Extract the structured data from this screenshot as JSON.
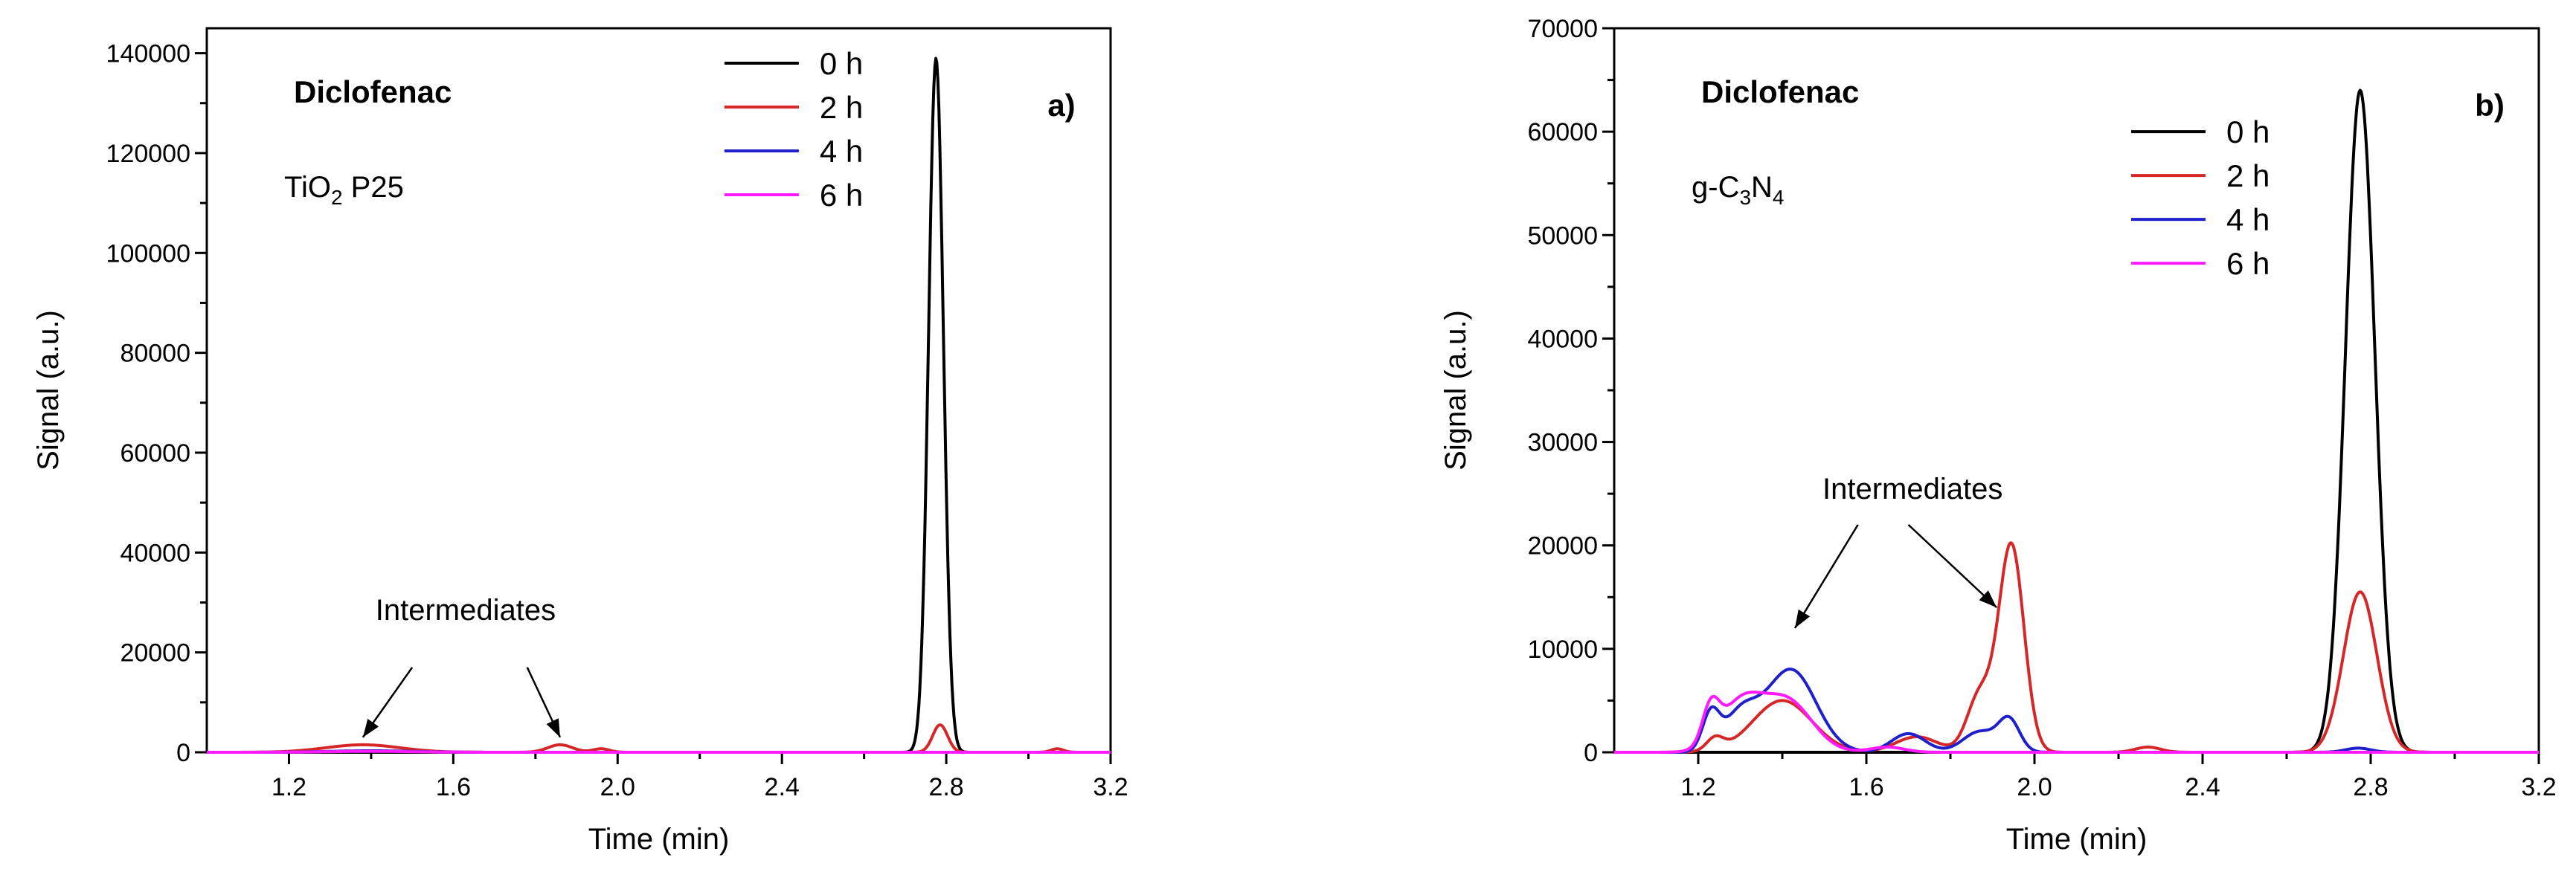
{
  "colors": {
    "0 h": "#000000",
    "2 h": "#d62728",
    "4 h": "#1f1fcc",
    "6 h": "#ff1aff"
  },
  "chart_data": [
    {
      "panel": "a",
      "type": "line",
      "panel_label": "a)",
      "compound": "Diclofenac",
      "catalyst_main": "TiO",
      "catalyst_sub": "2",
      "catalyst_rest": " P25",
      "xlabel": "Time (min)",
      "ylabel": "Signal (a.u.)",
      "xlim": [
        1.0,
        3.2
      ],
      "ylim": [
        0,
        145000
      ],
      "xticks": [
        1.2,
        1.6,
        2.0,
        2.4,
        2.8,
        3.2
      ],
      "xtick_labels": [
        "1.2",
        "1.6",
        "2.0",
        "2.4",
        "2.8",
        "3.2"
      ],
      "yticks": [
        0,
        20000,
        40000,
        60000,
        80000,
        100000,
        120000,
        140000
      ],
      "ytick_labels": [
        "0",
        "20000",
        "40000",
        "60000",
        "80000",
        "100000",
        "120000",
        "140000"
      ],
      "annotation": "Intermediates",
      "annotation_pos": [
        1.63,
        26500
      ],
      "arrows": [
        [
          1.5,
          17000,
          1.38,
          3000
        ],
        [
          1.78,
          17000,
          1.86,
          3000
        ]
      ],
      "legend_anchor": [
        2.26,
        138000
      ],
      "legend": [
        "0 h",
        "2 h",
        "4 h",
        "6 h"
      ],
      "series": [
        {
          "name": "0 h",
          "peaks": [
            [
              2.775,
              139000,
              0.018
            ]
          ]
        },
        {
          "name": "2 h",
          "peaks": [
            [
              2.785,
              5500,
              0.018
            ],
            [
              1.38,
              1500,
              0.09
            ],
            [
              1.86,
              1500,
              0.03
            ],
            [
              1.96,
              700,
              0.02
            ],
            [
              3.07,
              700,
              0.015
            ]
          ]
        },
        {
          "name": "4 h",
          "peaks": [
            [
              1.4,
              300,
              0.1
            ]
          ]
        },
        {
          "name": "6 h",
          "peaks": [
            [
              1.4,
              200,
              0.1
            ]
          ]
        }
      ]
    },
    {
      "panel": "b",
      "type": "line",
      "panel_label": "b)",
      "compound": "Diclofenac",
      "catalyst_main": "g-C",
      "catalyst_sub": "3",
      "catalyst_rest": "N",
      "catalyst_sub2": "4",
      "xlabel": "Time (min)",
      "ylabel": "Signal (a.u.)",
      "xlim": [
        1.0,
        3.2
      ],
      "ylim": [
        0,
        70000
      ],
      "xticks": [
        1.2,
        1.6,
        2.0,
        2.4,
        2.8,
        3.2
      ],
      "xtick_labels": [
        "1.2",
        "1.6",
        "2.0",
        "2.4",
        "2.8",
        "3.2"
      ],
      "yticks": [
        0,
        10000,
        20000,
        30000,
        40000,
        50000,
        60000,
        70000
      ],
      "ytick_labels": [
        "0",
        "10000",
        "20000",
        "30000",
        "40000",
        "50000",
        "60000",
        "70000"
      ],
      "annotation": "Intermediates",
      "annotation_pos": [
        1.71,
        24500
      ],
      "arrows": [
        [
          1.58,
          22000,
          1.43,
          12000
        ],
        [
          1.7,
          22000,
          1.91,
          14000
        ]
      ],
      "legend_anchor": [
        2.23,
        60000
      ],
      "legend": [
        "0 h",
        "2 h",
        "4 h",
        "6 h"
      ],
      "series": [
        {
          "name": "0 h",
          "peaks": [
            [
              2.775,
              64000,
              0.035
            ]
          ]
        },
        {
          "name": "2 h",
          "peaks": [
            [
              2.775,
              15500,
              0.04
            ],
            [
              1.945,
              20000,
              0.03
            ],
            [
              1.87,
              5500,
              0.03
            ],
            [
              1.4,
              5000,
              0.07
            ],
            [
              1.24,
              1200,
              0.02
            ],
            [
              1.72,
              1500,
              0.05
            ],
            [
              2.27,
              500,
              0.03
            ]
          ]
        },
        {
          "name": "4 h",
          "peaks": [
            [
              1.42,
              8000,
              0.06
            ],
            [
              1.3,
              3500,
              0.04
            ],
            [
              1.23,
              3500,
              0.02
            ],
            [
              1.7,
              1800,
              0.04
            ],
            [
              1.87,
              2000,
              0.04
            ],
            [
              1.94,
              3000,
              0.025
            ],
            [
              2.77,
              400,
              0.03
            ]
          ]
        },
        {
          "name": "6 h",
          "peaks": [
            [
              1.41,
              5000,
              0.06
            ],
            [
              1.3,
              4500,
              0.05
            ],
            [
              1.23,
              3500,
              0.02
            ],
            [
              1.65,
              500,
              0.04
            ]
          ]
        }
      ]
    }
  ]
}
